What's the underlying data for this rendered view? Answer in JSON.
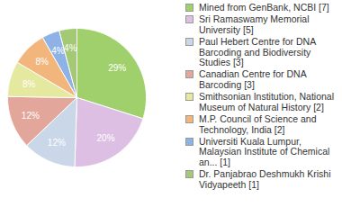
{
  "chart_data": {
    "type": "pie",
    "categories": [
      "Mined from GenBank, NCBI [7]",
      "Sri Ramaswamy Memorial University [5]",
      "Paul Hebert Centre for DNA Barcoding and Biodiversity Studies [3]",
      "Canadian Centre for DNA Barcoding [3]",
      "Smithsonian Institution, National Museum of Natural History [2]",
      "M.P. Council of Science and Technology, India [2]",
      "Universiti Kuala Lumpur, Malaysian Institute of Chemical an... [1]",
      "Dr. Panjabrao Deshmukh Krishi Vidyapeeth [1]"
    ],
    "values": [
      29,
      20,
      12,
      12,
      8,
      8,
      4,
      4
    ],
    "value_labels": [
      "29%",
      "20%",
      "12%",
      "12%",
      "8%",
      "8%",
      "4%",
      "4%"
    ],
    "colors": [
      "#9fd06b",
      "#dcbfe3",
      "#c9d7e8",
      "#e3a69a",
      "#e5e89f",
      "#f2b57c",
      "#8eb2e6",
      "#a3c974"
    ],
    "data_labels": true,
    "legend": "right"
  }
}
